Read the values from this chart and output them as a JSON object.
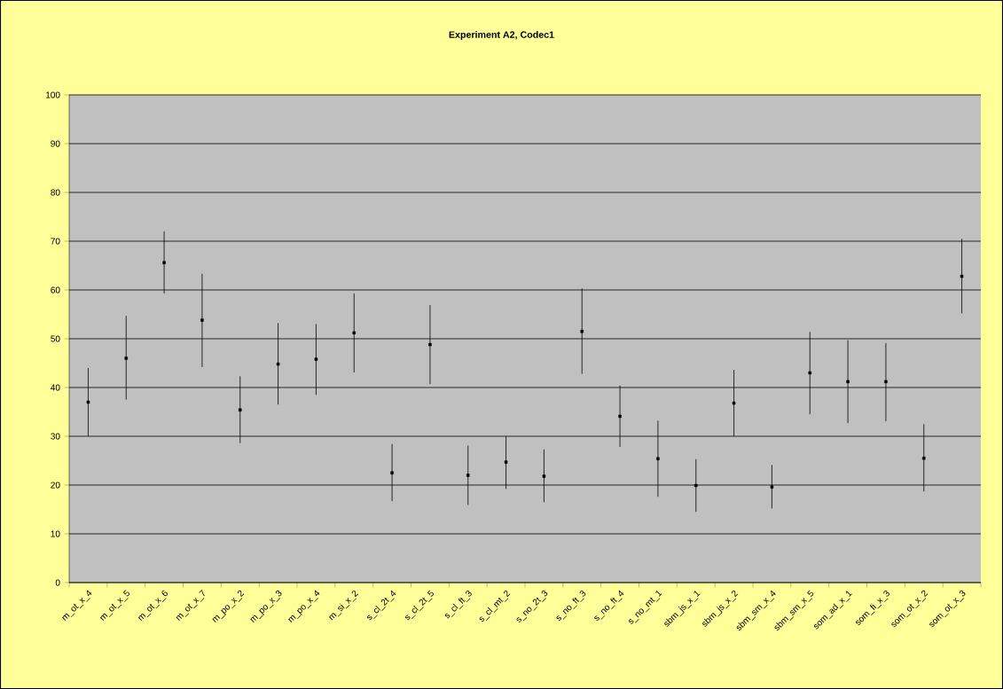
{
  "chart_data": {
    "type": "scatter",
    "title": "Experiment A2, Codec1",
    "categories": [
      "m_ot_x_4",
      "m_ot_x_5",
      "m_ot_x_6",
      "m_ot_x_7",
      "m_po_x_2",
      "m_po_x_3",
      "m_po_x_4",
      "m_si_x_2",
      "s_cl_2t_4",
      "s_cl_2t_5",
      "s_cl_ft_3",
      "s_cl_mt_2",
      "s_no_2t_3",
      "s_no_ft_3",
      "s_no_ft_4",
      "s_no_mt_1",
      "sbm_js_x_1",
      "sbm_js_x_2",
      "sbm_sm_x_4",
      "sbm_sm_x_5",
      "som_ad_x_1",
      "som_fi_x_3",
      "som_ot_x_2",
      "som_ot_x_3"
    ],
    "series": [
      {
        "color": "#000000",
        "values": [
          37,
          46,
          65.6,
          53.8,
          35.4,
          44.8,
          45.8,
          51.2,
          22.5,
          48.8,
          22,
          24.7,
          21.8,
          51.5,
          34.1,
          25.4,
          19.9,
          36.8,
          19.6,
          43,
          41.2,
          41.2,
          25.5,
          62.8
        ],
        "errors": [
          [
            30,
            44
          ],
          [
            37.5,
            54.7
          ],
          [
            59.3,
            72
          ],
          [
            44.2,
            63.3
          ],
          [
            28.6,
            42.3
          ],
          [
            36.5,
            53.2
          ],
          [
            38.5,
            53
          ],
          [
            43.1,
            59.3
          ],
          [
            16.7,
            28.4
          ],
          [
            40.7,
            56.9
          ],
          [
            15.9,
            28.1
          ],
          [
            19.2,
            30
          ],
          [
            16.5,
            27.3
          ],
          [
            42.8,
            60.3
          ],
          [
            27.8,
            40.4
          ],
          [
            17.6,
            33.2
          ],
          [
            14.5,
            25.3
          ],
          [
            30,
            43.6
          ],
          [
            15.2,
            24.1
          ],
          [
            34.5,
            51.4
          ],
          [
            32.7,
            49.7
          ],
          [
            33.1,
            49.1
          ],
          [
            18.7,
            32.5
          ],
          [
            55.2,
            70.5
          ]
        ]
      }
    ],
    "ylim": [
      0,
      100
    ],
    "yticks": [
      0,
      10,
      20,
      30,
      40,
      50,
      60,
      70,
      80,
      90,
      100
    ],
    "grid": "y",
    "marker": "square"
  }
}
